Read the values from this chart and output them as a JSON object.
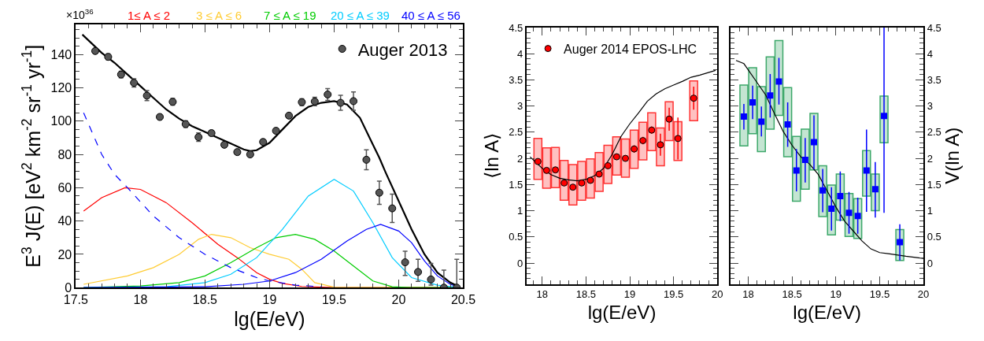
{
  "chart_data": [
    {
      "type": "line",
      "xlabel": "lg(E/eV)",
      "ylabel": "E$^{3}$ J(E) [eV$^{2}$ km$^{-2}$ sr$^{-1}$ yr$^{-1}$]",
      "annotations": [
        "×10$^{36}$"
      ],
      "xlim": [
        17.5,
        20.5
      ],
      "xticks": [
        17.5,
        18,
        18.5,
        19,
        19.5,
        20,
        20.5
      ],
      "ylim": [
        0,
        158
      ],
      "yticks": [
        0,
        20,
        40,
        60,
        80,
        100,
        120,
        140
      ],
      "legend": "top right",
      "series": [
        {
          "name": "1≤ A ≤ 2",
          "color": "#ff0000",
          "x": [
            17.56,
            17.7,
            17.88,
            18.0,
            18.2,
            18.4,
            18.6,
            18.75,
            18.9,
            19.0,
            19.1,
            19.25,
            19.5,
            20.47
          ],
          "values": [
            46,
            54,
            60,
            59,
            51,
            39,
            26,
            18,
            9,
            5,
            2.5,
            0.7,
            0,
            0
          ]
        },
        {
          "name": "3 ≤ A ≤ 6",
          "color": "#ffcc33",
          "x": [
            17.56,
            17.9,
            18.1,
            18.3,
            18.45,
            18.55,
            18.7,
            18.85,
            19.0,
            19.15,
            19.25,
            19.35,
            19.5,
            20.47
          ],
          "values": [
            2,
            7,
            12,
            20,
            29,
            32,
            30,
            24,
            20,
            17,
            11,
            3,
            0.3,
            0
          ]
        },
        {
          "name": "7 ≤ A ≤ 19",
          "color": "#00cc00",
          "x": [
            17.56,
            18.0,
            18.3,
            18.5,
            18.7,
            18.9,
            19.05,
            19.2,
            19.35,
            19.5,
            19.65,
            19.8,
            19.95,
            20.1,
            20.47
          ],
          "values": [
            0,
            1,
            3,
            7,
            15,
            24,
            30,
            32,
            29,
            22,
            13,
            4,
            0.5,
            0,
            0
          ]
        },
        {
          "name": "20 ≤ A ≤ 39",
          "color": "#00ccff",
          "x": [
            17.56,
            18.2,
            18.5,
            18.7,
            18.9,
            19.1,
            19.3,
            19.5,
            19.65,
            19.8,
            19.95,
            20.1,
            20.3,
            20.47
          ],
          "values": [
            0,
            0.5,
            3,
            8,
            18,
            35,
            55,
            65,
            58,
            39,
            18,
            6,
            1.5,
            0
          ]
        },
        {
          "name": "40 ≤ A ≤ 56",
          "color": "#0000ff",
          "x": [
            17.56,
            18.5,
            18.8,
            19.0,
            19.2,
            19.4,
            19.6,
            19.75,
            19.86,
            20.0,
            20.1,
            20.2,
            20.3,
            20.4,
            20.47
          ],
          "values": [
            0,
            0.5,
            2,
            4,
            9,
            17,
            28,
            35,
            38,
            34,
            27,
            16,
            7,
            2,
            0.3
          ]
        },
        {
          "color": "#0000ff",
          "line_style": "dashed",
          "x": [
            17.56,
            17.7,
            17.8,
            17.9,
            18.1,
            18.3,
            18.5,
            18.7,
            18.9,
            19.0,
            19.2,
            19.4
          ],
          "values": [
            105,
            80,
            68,
            60,
            43,
            30,
            20,
            12,
            6,
            4,
            1.5,
            0.5
          ]
        },
        {
          "color": "#000000",
          "x": [
            17.55,
            17.7,
            17.8,
            17.9,
            18.0,
            18.1,
            18.2,
            18.3,
            18.4,
            18.5,
            18.6,
            18.7,
            18.8,
            18.85,
            18.9,
            19.0,
            19.1,
            19.2,
            19.3,
            19.4,
            19.5,
            19.6,
            19.7,
            19.8,
            19.85,
            19.9,
            20.0,
            20.1,
            20.2,
            20.3,
            20.4,
            20.47
          ],
          "values": [
            152,
            141,
            135,
            128,
            121,
            114,
            107,
            101.5,
            97,
            93.5,
            90,
            86.5,
            83,
            82,
            82.5,
            87,
            95,
            103,
            108.5,
            111,
            112,
            110,
            102,
            86,
            78,
            69,
            52,
            35,
            20,
            9,
            3,
            0.5
          ]
        },
        {
          "name": "Auger 2013",
          "color": "#555555",
          "type": "scatter",
          "marker": "circle",
          "x": [
            17.65,
            17.75,
            17.85,
            17.95,
            18.05,
            18.15,
            18.25,
            18.35,
            18.45,
            18.55,
            18.65,
            18.75,
            18.85,
            18.95,
            19.05,
            19.15,
            19.25,
            19.35,
            19.45,
            19.55,
            19.65,
            19.75,
            19.85,
            19.95,
            20.05,
            20.15,
            20.25,
            20.35,
            20.45
          ],
          "values": [
            142.1,
            138.6,
            128,
            123,
            115.3,
            102.5,
            111.6,
            98.2,
            90.4,
            92.8,
            85.8,
            81.4,
            80,
            87.5,
            94.2,
            103.3,
            111.4,
            111.8,
            116,
            111,
            112,
            76.8,
            57,
            47.6,
            15.2,
            9.4,
            4.9,
            0,
            0
          ],
          "errors": [
            1.5,
            1.8,
            2,
            2.5,
            3,
            1.5,
            2,
            2,
            2.5,
            1.5,
            1.5,
            1.5,
            1.5,
            1.5,
            1.5,
            1.5,
            2,
            2.5,
            3.5,
            4.5,
            5.5,
            6,
            7,
            8.5,
            [
              7.3,
              21.8
            ],
            [
              3.8,
              17
            ],
            [
              1.5,
              14.5
            ],
            [
              0,
              10.5
            ],
            [
              0,
              17
            ]
          ]
        }
      ]
    },
    {
      "type": "scatter",
      "xlabel": "lg(E/eV)",
      "ylabel": "⟨ln A⟩",
      "xlim": [
        17.82,
        20.0
      ],
      "xticks": [
        18,
        18.5,
        19,
        19.5,
        20
      ],
      "ylim": [
        -0.4,
        4.5
      ],
      "yticks": [
        0,
        0.5,
        1,
        1.5,
        2,
        2.5,
        3,
        3.5,
        4,
        4.5
      ],
      "legend": "top left",
      "series": [
        {
          "color": "#ff3333",
          "type": "bar",
          "x": [
            17.95,
            18.05,
            18.15,
            18.25,
            18.35,
            18.45,
            18.55,
            18.65,
            18.75,
            18.85,
            18.95,
            19.05,
            19.15,
            19.25,
            19.35,
            19.45,
            19.55,
            19.73
          ],
          "base": [
            1.6,
            1.43,
            1.44,
            1.2,
            1.11,
            1.2,
            1.24,
            1.37,
            1.52,
            1.68,
            1.64,
            1.81,
            1.97,
            2.15,
            1.86,
            2.34,
            1.96,
            2.72
          ],
          "values": [
            0.78,
            0.77,
            0.77,
            0.76,
            0.77,
            0.74,
            0.75,
            0.74,
            0.73,
            0.73,
            0.73,
            0.73,
            0.72,
            0.72,
            0.72,
            0.74,
            0.74,
            0.76
          ]
        },
        {
          "color": "#000000",
          "type": "line",
          "x": [
            17.86,
            18.0,
            18.1,
            18.2,
            18.3,
            18.4,
            18.5,
            18.6,
            18.7,
            18.8,
            18.9,
            19.0,
            19.1,
            19.2,
            19.3,
            19.4,
            19.5,
            19.6,
            19.7,
            19.8,
            19.98
          ],
          "values": [
            2.03,
            1.81,
            1.69,
            1.62,
            1.59,
            1.57,
            1.6,
            1.67,
            1.81,
            2.08,
            2.42,
            2.66,
            2.87,
            3.09,
            3.23,
            3.33,
            3.4,
            3.47,
            3.55,
            3.59,
            3.68
          ]
        },
        {
          "name": "Auger 2014 EPOS-LHC",
          "color": "#ff0000",
          "marker": "circle",
          "x": [
            17.95,
            18.05,
            18.15,
            18.25,
            18.35,
            18.45,
            18.55,
            18.65,
            18.75,
            18.85,
            18.95,
            19.05,
            19.15,
            19.25,
            19.35,
            19.45,
            19.55,
            19.73
          ],
          "values": [
            1.94,
            1.77,
            1.78,
            1.53,
            1.45,
            1.53,
            1.58,
            1.7,
            1.86,
            2.03,
            2.0,
            2.18,
            2.34,
            2.54,
            2.26,
            2.75,
            2.38,
            3.15
          ],
          "errors": [
            0.05,
            0.05,
            0.05,
            0.05,
            0.05,
            0.05,
            0.05,
            0.05,
            0.06,
            0.06,
            0.06,
            0.07,
            0.07,
            0.07,
            0.21,
            0.22,
            0.4,
            0.22
          ]
        }
      ]
    },
    {
      "type": "scatter",
      "xlabel": "lg(E/eV)",
      "ylabel": "V(ln A)",
      "xlim": [
        17.8,
        20.0
      ],
      "xticks": [
        18,
        18.5,
        19,
        19.5,
        20
      ],
      "ylim": [
        -0.4,
        4.5
      ],
      "yticks": [
        0,
        0.5,
        1,
        1.5,
        2,
        2.5,
        3,
        3.5,
        4,
        4.5
      ],
      "series": [
        {
          "color": "#3da86a",
          "type": "bar",
          "x": [
            17.95,
            18.05,
            18.15,
            18.25,
            18.35,
            18.45,
            18.55,
            18.65,
            18.75,
            18.85,
            18.95,
            19.05,
            19.15,
            19.25,
            19.35,
            19.45,
            19.55,
            19.73
          ],
          "base": [
            2.24,
            2.47,
            2.13,
            2.56,
            2.82,
            2.03,
            1.18,
            1.41,
            1.78,
            0.89,
            0.54,
            0.82,
            0.51,
            0.47,
            1.28,
            1.0,
            2.3,
            0.05
          ],
          "values": [
            1.16,
            1.26,
            1.24,
            1.38,
            1.43,
            1.32,
            1.24,
            1.15,
            1.08,
            0.97,
            0.95,
            0.88,
            0.82,
            0.76,
            0.87,
            0.7,
            0.89,
            0.59
          ]
        },
        {
          "color": "#000000",
          "type": "line",
          "x": [
            17.86,
            17.95,
            18.1,
            18.2,
            18.3,
            18.4,
            18.5,
            18.6,
            18.7,
            18.8,
            18.9,
            19.0,
            19.1,
            19.2,
            19.3,
            19.4,
            19.5,
            19.6,
            19.8,
            20.0
          ],
          "values": [
            3.87,
            3.81,
            3.45,
            3.21,
            2.85,
            2.51,
            2.25,
            2.03,
            1.89,
            1.69,
            1.38,
            1.07,
            0.8,
            0.61,
            0.42,
            0.27,
            0.2,
            0.18,
            0.13,
            0.09
          ]
        },
        {
          "color": "#0000ff",
          "marker": "square",
          "x": [
            17.95,
            18.05,
            18.15,
            18.25,
            18.35,
            18.45,
            18.55,
            18.65,
            18.75,
            18.85,
            18.95,
            19.05,
            19.15,
            19.25,
            19.35,
            19.45,
            19.55,
            19.73
          ],
          "values": [
            2.8,
            3.07,
            2.7,
            3.2,
            3.47,
            2.65,
            1.77,
            1.97,
            2.31,
            1.39,
            1.04,
            1.28,
            0.96,
            0.9,
            1.77,
            1.41,
            2.81,
            0.4
          ],
          "errors": [
            [
              2.55,
              3.04
            ],
            [
              2.75,
              3.39
            ],
            [
              2.42,
              2.99
            ],
            [
              2.78,
              3.61
            ],
            [
              3.03,
              3.92
            ],
            [
              2.22,
              3.07
            ],
            [
              1.37,
              2.18
            ],
            [
              1.54,
              2.39
            ],
            [
              1.79,
              2.82
            ],
            [
              0.97,
              1.8
            ],
            [
              0.62,
              1.45
            ],
            [
              0.8,
              1.75
            ],
            [
              0.56,
              1.36
            ],
            [
              0.56,
              1.25
            ],
            [
              0.98,
              2.55
            ],
            [
              0.87,
              1.93
            ],
            [
              0.96,
              4.5
            ],
            [
              0.05,
              0.74
            ]
          ]
        }
      ]
    }
  ]
}
